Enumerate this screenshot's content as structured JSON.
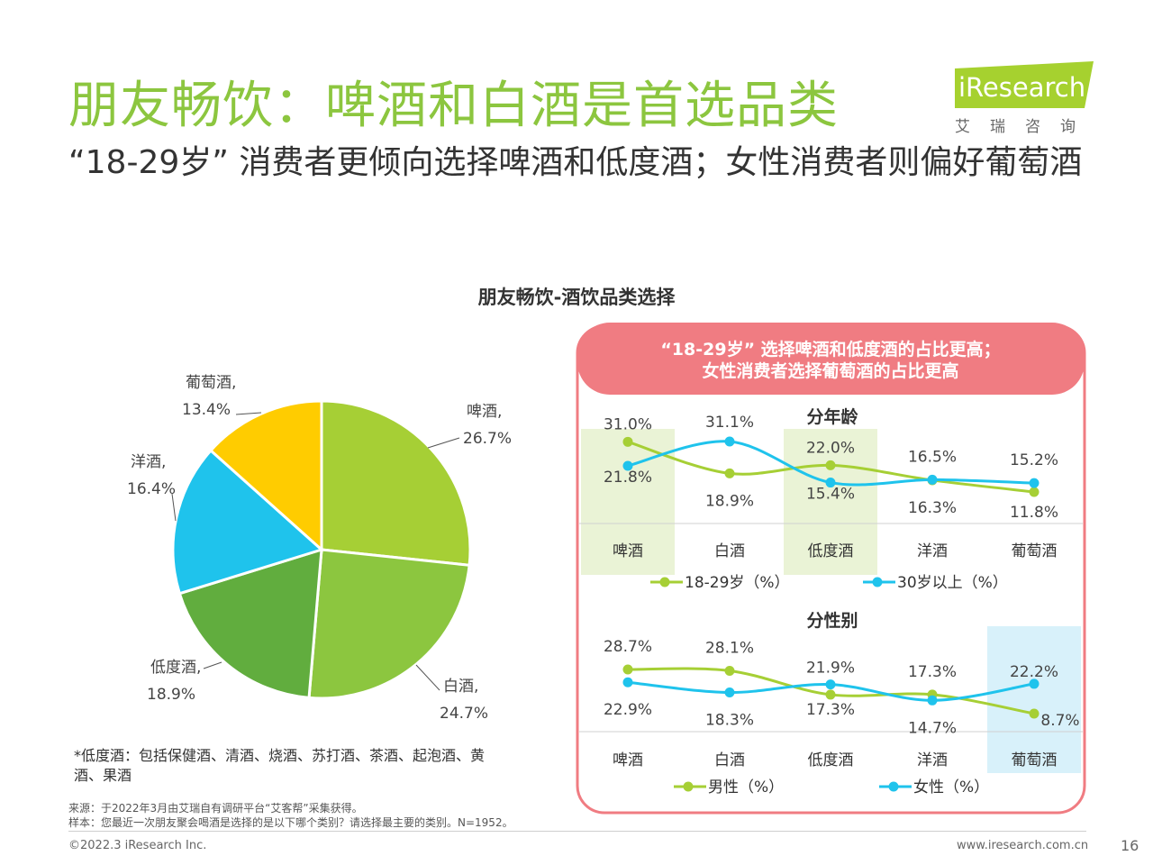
{
  "header": {
    "title": "朋友畅饮：啤酒和白酒是首选品类",
    "subtitle": "“18-29岁” 消费者更倾向选择啤酒和低度酒；女性消费者则偏好葡萄酒",
    "logo_text": "iResearch",
    "logo_sub": "艾瑞咨询",
    "logo_color": "#a6d12f"
  },
  "chart_data": [
    {
      "type": "pie",
      "title": "朋友畅饮-酒饮品类选择",
      "slices": [
        {
          "name": "啤酒",
          "label": "啤酒,",
          "value": 26.7,
          "text": "26.7%",
          "color": "#a6cf35"
        },
        {
          "name": "白酒",
          "label": "白酒,",
          "value": 24.7,
          "text": "24.7%",
          "color": "#8cc63f"
        },
        {
          "name": "低度酒",
          "label": "低度酒,",
          "value": 18.9,
          "text": "18.9%",
          "color": "#61ad3e"
        },
        {
          "name": "洋酒",
          "label": "洋酒,",
          "value": 16.4,
          "text": "16.4%",
          "color": "#1fc3ec"
        },
        {
          "name": "葡萄酒",
          "label": "葡萄酒,",
          "value": 13.4,
          "text": "13.4%",
          "color": "#ffcc00"
        }
      ]
    },
    {
      "type": "line",
      "title": "分年龄",
      "categories": [
        "啤酒",
        "白酒",
        "低度酒",
        "洋酒",
        "葡萄酒"
      ],
      "highlight": [
        "啤酒",
        "低度酒"
      ],
      "series": [
        {
          "name": "18-29岁（%）",
          "values": [
            31.0,
            18.9,
            22.0,
            16.3,
            11.8
          ],
          "color": "#a6cf35"
        },
        {
          "name": "30岁以上（%）",
          "values": [
            21.8,
            31.1,
            15.4,
            16.5,
            15.2
          ],
          "color": "#1fc3ec"
        }
      ]
    },
    {
      "type": "line",
      "title": "分性别",
      "categories": [
        "啤酒",
        "白酒",
        "低度酒",
        "洋酒",
        "葡萄酒"
      ],
      "highlight": [
        "葡萄酒"
      ],
      "series": [
        {
          "name": "男性（%）",
          "values": [
            28.7,
            28.1,
            17.3,
            17.3,
            8.7
          ],
          "color": "#a6cf35"
        },
        {
          "name": "女性（%）",
          "values": [
            22.9,
            18.3,
            21.9,
            14.7,
            22.2
          ],
          "color": "#1fc3ec"
        }
      ]
    }
  ],
  "callout": {
    "line1": "“18-29岁” 选择啤酒和低度酒的占比更高；",
    "line2": "女性消费者选择葡萄酒的占比更高",
    "color": "#f07c82"
  },
  "footnote": "*低度酒：包括保健酒、清酒、烧酒、苏打酒、茶酒、起泡酒、黄酒、果酒",
  "source": {
    "line1": "来源：于2022年3月由艾瑞自有调研平台“艾客帮”采集获得。",
    "line2": "样本：您最近一次朋友聚会喝酒是选择的是以下哪个类别？请选择最主要的类别。N=1952。"
  },
  "footer": {
    "copyright": "©2022.3 iResearch Inc.",
    "website": "www.iresearch.com.cn",
    "page": "16"
  }
}
